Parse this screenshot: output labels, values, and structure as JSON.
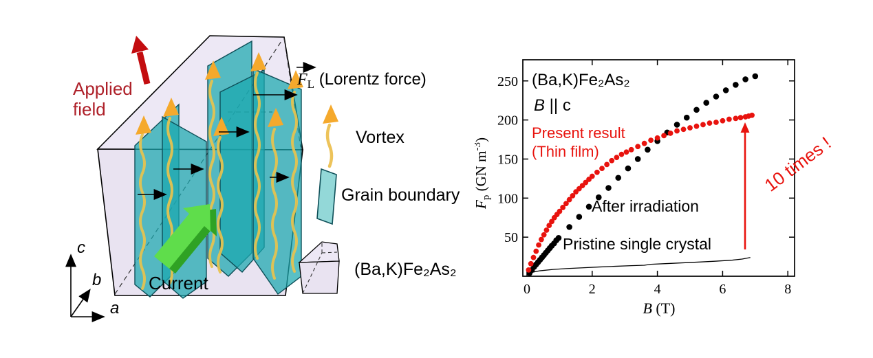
{
  "diagram": {
    "applied_field_line1": "Applied",
    "applied_field_line2": "field",
    "current_label": "Current",
    "axis_a": "a",
    "axis_b": "b",
    "axis_c": "c",
    "lorentz": {
      "f": "F",
      "sub": "L",
      "rest": " (Lorentz force)"
    },
    "vortex_label": "Vortex",
    "grain_boundary_label": "Grain boundary",
    "crystal_label": "(Ba,K)Fe₂As₂",
    "colors": {
      "box_fill": "#e9e3f1",
      "box_top_fill": "#ede8f5",
      "plane_teal": "#1ba8ae",
      "plane_edge": "#0e4f58",
      "legend_swatch": "#93d8d8",
      "vortex_yellow": "#e8c24d",
      "vortex_head_orange": "#f5a92c",
      "current_green": "#5fdd4b",
      "current_green_dark": "#2fa224",
      "applied_field_red": "#c30d10",
      "applied_field_text": "#ae2029"
    }
  },
  "chart_data": {
    "type": "scatter",
    "title": "(Ba,K)Fe₂As₂",
    "field_orientation": {
      "b": "B",
      "rest": " || c"
    },
    "xlabel": {
      "b": "B",
      "rest": " (T)"
    },
    "ylabel": {
      "f": "F",
      "sub": "p",
      "rest": " (GN m",
      "sup": "-3",
      "close": ")"
    },
    "xlim": [
      0,
      8.1
    ],
    "ylim": [
      0,
      277
    ],
    "x_ticks": [
      0,
      2,
      4,
      6,
      8
    ],
    "y_ticks": [
      50,
      100,
      150,
      200,
      250
    ],
    "grid": false,
    "legend_position": "inline-annotations",
    "annotation": {
      "text": "10 times !",
      "color": "#e8130e"
    },
    "series": [
      {
        "name": "Present result (Thin film)",
        "label_line1": "Present result",
        "label_line2": "(Thin film)",
        "type": "scatter",
        "color": "#e8130e",
        "x": [
          0.05,
          0.12,
          0.2,
          0.28,
          0.36,
          0.44,
          0.52,
          0.6,
          0.68,
          0.76,
          0.84,
          0.92,
          1.0,
          1.1,
          1.2,
          1.3,
          1.4,
          1.5,
          1.6,
          1.7,
          1.8,
          1.9,
          2.0,
          2.15,
          2.3,
          2.45,
          2.6,
          2.75,
          2.9,
          3.05,
          3.2,
          3.4,
          3.6,
          3.8,
          4.0,
          4.2,
          4.4,
          4.6,
          4.8,
          5.0,
          5.2,
          5.4,
          5.6,
          5.8,
          6.0,
          6.2,
          6.4,
          6.55,
          6.7,
          6.8,
          6.9
        ],
        "y": [
          8,
          16,
          24,
          32,
          40,
          47,
          53,
          59,
          65,
          70,
          75,
          79,
          83,
          88,
          93,
          98,
          103,
          108,
          112,
          116,
          120,
          124,
          128,
          133,
          138,
          143,
          148,
          152,
          156,
          159,
          162,
          166,
          170,
          174,
          177,
          180,
          183,
          186,
          188,
          190,
          192,
          194,
          196,
          197,
          199,
          201,
          202,
          203,
          204,
          205,
          206
        ]
      },
      {
        "name": "After irradiation",
        "label": "After irradiation",
        "type": "scatter",
        "color": "#000000",
        "x": [
          0.08,
          0.15,
          0.22,
          0.28,
          0.34,
          0.4,
          0.46,
          0.52,
          0.58,
          0.64,
          0.7,
          0.76,
          0.83,
          0.9,
          0.97,
          1.3,
          1.6,
          1.9,
          2.2,
          2.5,
          2.8,
          3.1,
          3.4,
          3.7,
          4.0,
          4.3,
          4.6,
          4.9,
          5.2,
          5.5,
          5.8,
          6.1,
          6.4,
          6.7,
          7.0
        ],
        "y": [
          4,
          8,
          12,
          15,
          18,
          21,
          24,
          27,
          30,
          33,
          36,
          39,
          42,
          46,
          49,
          63,
          76,
          89,
          101,
          113,
          126,
          138,
          150,
          162,
          173,
          184,
          194,
          203,
          213,
          222,
          230,
          238,
          245,
          252,
          256
        ]
      },
      {
        "name": "Pristine single crystal",
        "label": "Pristine single crystal",
        "type": "line",
        "color": "#000000",
        "x": [
          0.15,
          0.4,
          0.8,
          1.2,
          1.7,
          2.2,
          2.7,
          3.2,
          3.6,
          3.8,
          4.3,
          4.8,
          5.3,
          5.8,
          6.3,
          6.6,
          6.85
        ],
        "y": [
          5,
          7,
          8.7,
          9.8,
          10.8,
          11.8,
          12.7,
          13.5,
          14.1,
          15.3,
          16.2,
          17.2,
          18.2,
          19.3,
          20.6,
          22,
          24
        ]
      }
    ]
  }
}
